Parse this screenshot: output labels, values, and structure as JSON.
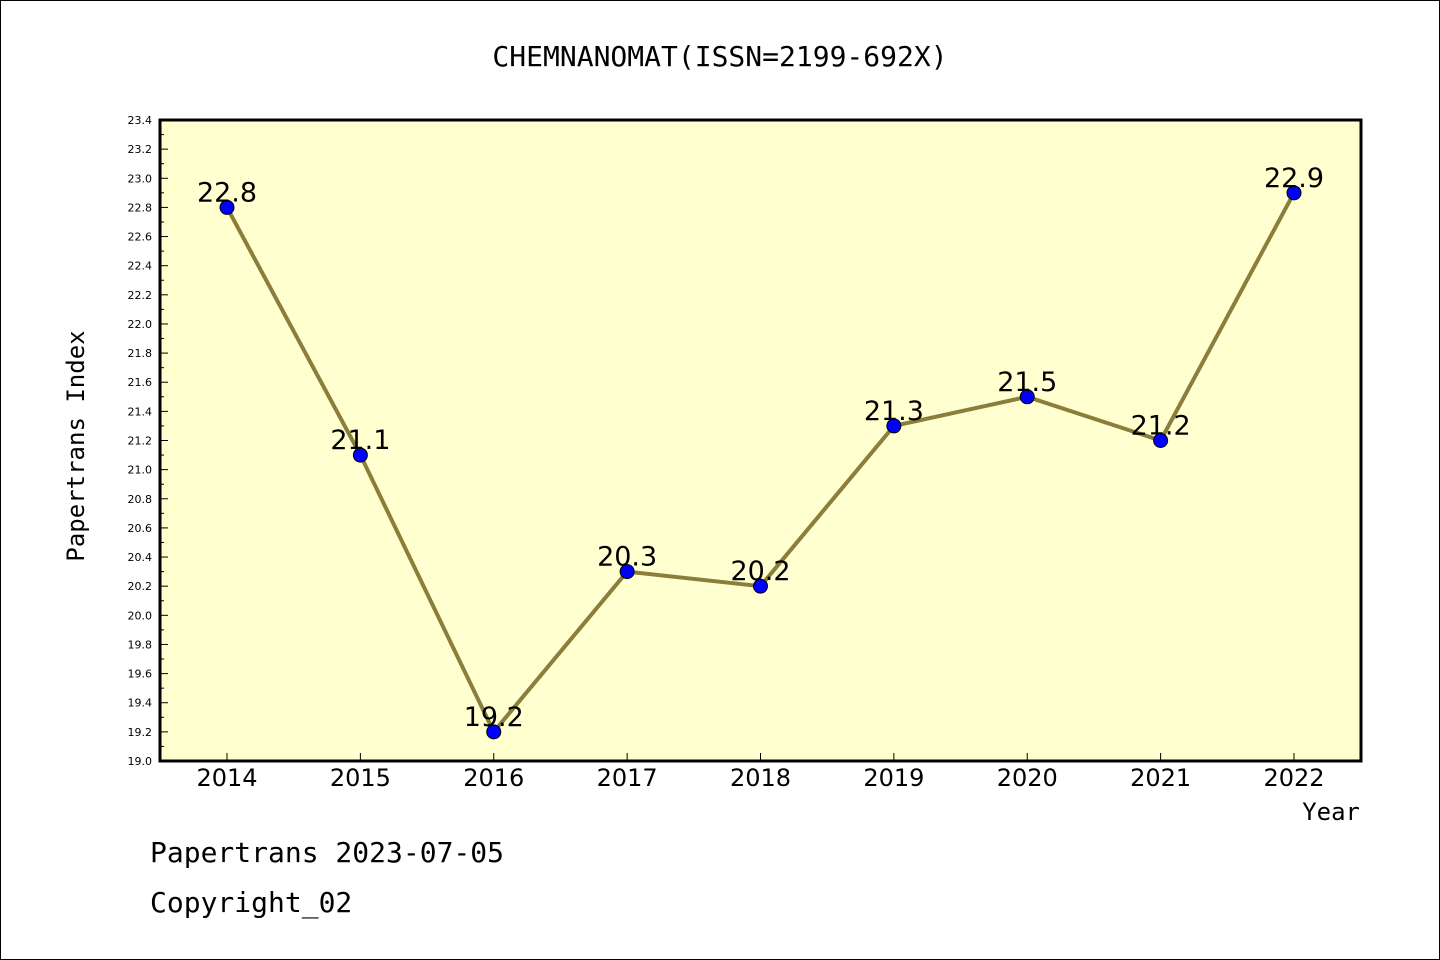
{
  "chart_data": {
    "type": "line",
    "title": "CHEMNANOMAT(ISSN=2199-692X)",
    "xlabel": "Year",
    "ylabel": "Papertrans Index",
    "categories": [
      "2014",
      "2015",
      "2016",
      "2017",
      "2018",
      "2019",
      "2020",
      "2021",
      "2022"
    ],
    "series": [
      {
        "values": [
          22.8,
          21.1,
          19.2,
          20.3,
          20.2,
          21.3,
          21.5,
          21.2,
          22.9
        ]
      }
    ],
    "data_labels": [
      "22.8",
      "21.1",
      "19.2",
      "20.3",
      "20.2",
      "21.3",
      "21.5",
      "21.2",
      "22.9"
    ],
    "ylim": [
      19.0,
      23.4
    ],
    "y_ticks": [
      "19.0",
      "19.2",
      "19.4",
      "19.6",
      "19.8",
      "20.0",
      "20.2",
      "20.4",
      "20.6",
      "20.8",
      "21.0",
      "21.2",
      "21.4",
      "21.6",
      "21.8",
      "22.0",
      "22.2",
      "22.4",
      "22.6",
      "22.8",
      "23.0",
      "23.2",
      "23.4"
    ],
    "grid": false,
    "colors": {
      "plot_background": "#ffffd0",
      "line": "#8b7d3a",
      "marker": "#0000ff"
    }
  },
  "footer": {
    "date_line": "Papertrans 2023-07-05",
    "copyright_line": "Copyright_02"
  }
}
